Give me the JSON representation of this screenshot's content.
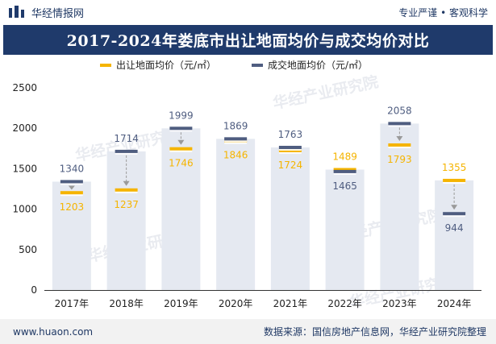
{
  "brand": {
    "name": "华经情报网",
    "slogan": "专业严谨 • 客观科学"
  },
  "watermark_text": "华经产业研究院",
  "chart_data": {
    "type": "bar",
    "title": "2017-2024年娄底市出让地面均价与成交均价对比",
    "categories": [
      "2017年",
      "2018年",
      "2019年",
      "2020年",
      "2021年",
      "2022年",
      "2023年",
      "2024年"
    ],
    "series": [
      {
        "name": "出让地面均价（元/㎡）",
        "color": "#f5b400",
        "values": [
          1203,
          1237,
          1746,
          1846,
          1724,
          1489,
          1793,
          1355
        ]
      },
      {
        "name": "成交地面均价（元/㎡）",
        "color": "#4f5d80",
        "values": [
          1340,
          1714,
          1999,
          1869,
          1763,
          1465,
          2058,
          944
        ]
      }
    ],
    "ylim": [
      0,
      2500
    ],
    "yticks": [
      0,
      500,
      1000,
      1500,
      2000,
      2500
    ],
    "grid": false,
    "legend_position": "top"
  },
  "footer": {
    "website": "www.huaon.com",
    "source": "数据来源：国信房地产信息网，华经产业研究院整理"
  }
}
